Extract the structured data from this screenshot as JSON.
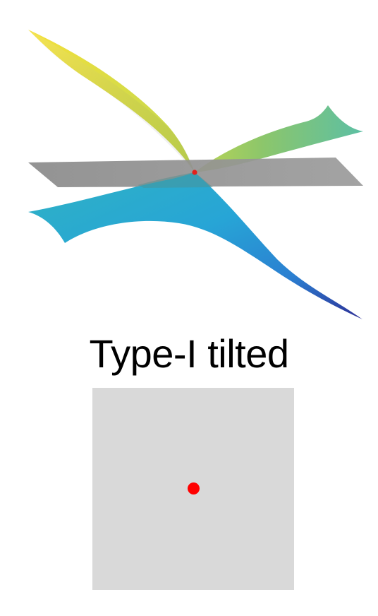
{
  "caption": "Type-I tilted",
  "colors": {
    "upper_surface_start": "#f4e03a",
    "upper_surface_mid": "#8cc66b",
    "upper_surface_end": "#5cbfa4",
    "lower_surface_start": "#2fb2c4",
    "lower_surface_mid": "#27a5d6",
    "lower_surface_end": "#2d2f96",
    "plane": "#8f8f8f",
    "crossing_point": "#e3211b",
    "square_fill": "#d9d9d9",
    "point_fill": "#ff0000"
  },
  "icons": {
    "top_figure": "tilted-weyl-cone-surface",
    "bottom_figure": "fermi-surface-point"
  }
}
